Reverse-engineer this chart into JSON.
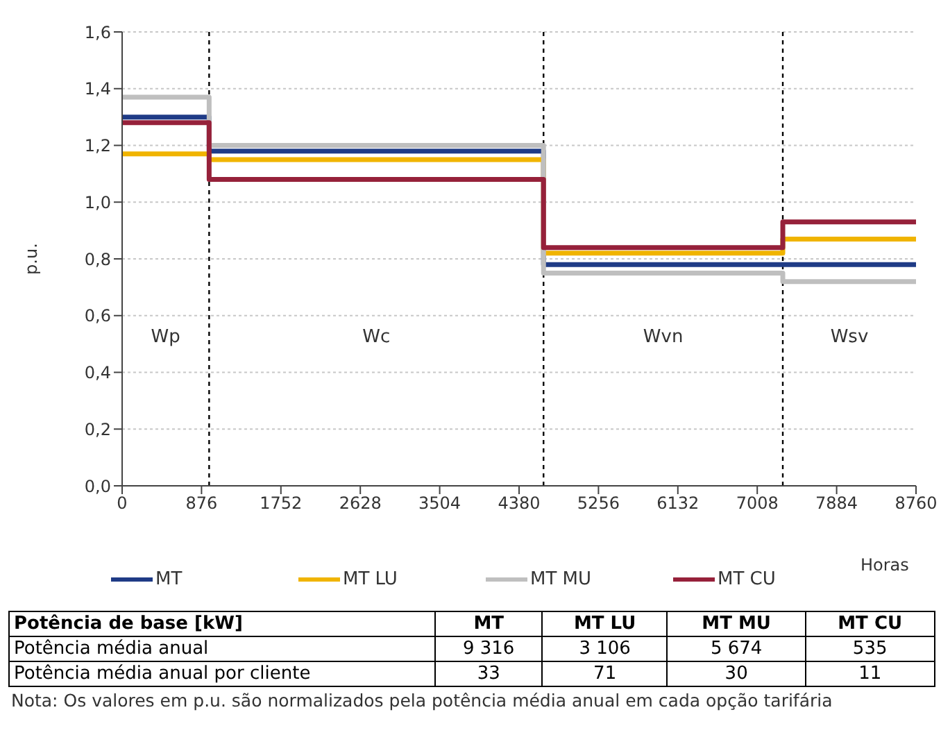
{
  "chart_data": [
    {
      "type": "step",
      "ylabel": "p.u.",
      "xlabel": "Horas",
      "xlim": [
        0,
        8760
      ],
      "xticks": [
        0,
        876,
        1752,
        2628,
        3504,
        4380,
        5256,
        6132,
        7008,
        7884,
        8760
      ],
      "ylim": [
        0,
        1.6
      ],
      "yticks": [
        {
          "value": 0,
          "label": "0,0"
        },
        {
          "value": 0.2,
          "label": "0,2"
        },
        {
          "value": 0.4,
          "label": "0,4"
        },
        {
          "value": 0.6,
          "label": "0,6"
        },
        {
          "value": 0.8,
          "label": "0,8"
        },
        {
          "value": 1,
          "label": "1,0"
        },
        {
          "value": 1.2,
          "label": "1,2"
        },
        {
          "value": 1.4,
          "label": "1,4"
        },
        {
          "value": 1.6,
          "label": "1,6"
        }
      ],
      "grid": "y",
      "legend": "bottom",
      "x": [
        0,
        960,
        4650,
        7290,
        8760
      ],
      "series": [
        {
          "name": "MT",
          "color": "#1f3b86",
          "values": [
            1.3,
            1.18,
            0.78,
            0.78,
            0.78
          ]
        },
        {
          "name": "MT LU",
          "color": "#f0b400",
          "values": [
            1.17,
            1.15,
            0.82,
            0.87,
            0.87
          ]
        },
        {
          "name": "MT MU",
          "color": "#bfbfbf",
          "values": [
            1.37,
            1.2,
            0.75,
            0.72,
            0.72
          ]
        },
        {
          "name": "MT CU",
          "color": "#96213a",
          "values": [
            1.28,
            1.08,
            0.84,
            0.93,
            0.93
          ]
        }
      ],
      "ref_lines": [
        {
          "axis": "x",
          "value": 960,
          "color": "#000000",
          "line_style": "dashed"
        },
        {
          "axis": "x",
          "value": 4650,
          "color": "#000000",
          "line_style": "dashed"
        },
        {
          "axis": "x",
          "value": 7290,
          "color": "#000000",
          "line_style": "dashed"
        }
      ],
      "annotations": [
        "Wp",
        "Wc",
        "Wvn",
        "Wsv"
      ]
    },
    {
      "type": "other",
      "title": "Potência de base [kW]",
      "categories": [
        "MT",
        "MT LU",
        "MT MU",
        "MT CU"
      ],
      "series": [
        {
          "name": "Potência média anual",
          "values": [
            9316,
            3106,
            5674,
            535
          ],
          "value_labels": [
            "9 316",
            "3 106",
            "5 674",
            "535"
          ]
        },
        {
          "name": "Potência média anual por cliente",
          "values": [
            33,
            71,
            30,
            11
          ],
          "value_labels": [
            "33",
            "71",
            "30",
            "11"
          ]
        }
      ],
      "annotations": [
        "Nota: Os valores em p.u. são normalizados pela potência média anual em cada opção tarifária"
      ]
    }
  ]
}
